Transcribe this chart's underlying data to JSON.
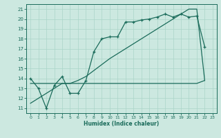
{
  "title": "",
  "xlabel": "Humidex (Indice chaleur)",
  "bg_color": "#cce8e0",
  "line_color": "#1a6b5a",
  "grid_color": "#aad4c8",
  "xlim": [
    -0.5,
    23.5
  ],
  "ylim": [
    10.5,
    21.5
  ],
  "xticks": [
    0,
    1,
    2,
    3,
    4,
    5,
    6,
    7,
    8,
    9,
    10,
    11,
    12,
    13,
    14,
    15,
    16,
    17,
    18,
    19,
    20,
    21,
    22,
    23
  ],
  "yticks": [
    11,
    12,
    13,
    14,
    15,
    16,
    17,
    18,
    19,
    20,
    21
  ],
  "line1_x": [
    0,
    1,
    2,
    3,
    4,
    5,
    6,
    7,
    8,
    9,
    10,
    11,
    12,
    13,
    14,
    15,
    16,
    17,
    18,
    19,
    20,
    21,
    22
  ],
  "line1_y": [
    14.0,
    13.0,
    11.0,
    13.3,
    14.2,
    12.5,
    12.5,
    13.8,
    16.7,
    18.0,
    18.2,
    18.2,
    19.7,
    19.7,
    19.9,
    20.0,
    20.2,
    20.5,
    20.2,
    20.5,
    20.2,
    20.3,
    17.2
  ],
  "line2_x": [
    0,
    1,
    2,
    3,
    4,
    5,
    6,
    7,
    8,
    9,
    10,
    11,
    12,
    13,
    14,
    15,
    16,
    17,
    18,
    19,
    20,
    21,
    22
  ],
  "line2_y": [
    11.5,
    12.0,
    12.5,
    13.0,
    13.5,
    13.5,
    13.8,
    14.2,
    14.8,
    15.4,
    16.0,
    16.5,
    17.0,
    17.5,
    18.0,
    18.5,
    19.0,
    19.5,
    20.0,
    20.5,
    21.0,
    21.0,
    13.8
  ],
  "line3_x": [
    0,
    1,
    2,
    3,
    4,
    5,
    6,
    7,
    8,
    9,
    10,
    11,
    12,
    13,
    14,
    15,
    16,
    17,
    18,
    19,
    20,
    21,
    22
  ],
  "line3_y": [
    13.5,
    13.5,
    13.5,
    13.5,
    13.5,
    13.5,
    13.5,
    13.5,
    13.5,
    13.5,
    13.5,
    13.5,
    13.5,
    13.5,
    13.5,
    13.5,
    13.5,
    13.5,
    13.5,
    13.5,
    13.5,
    13.5,
    13.8
  ]
}
